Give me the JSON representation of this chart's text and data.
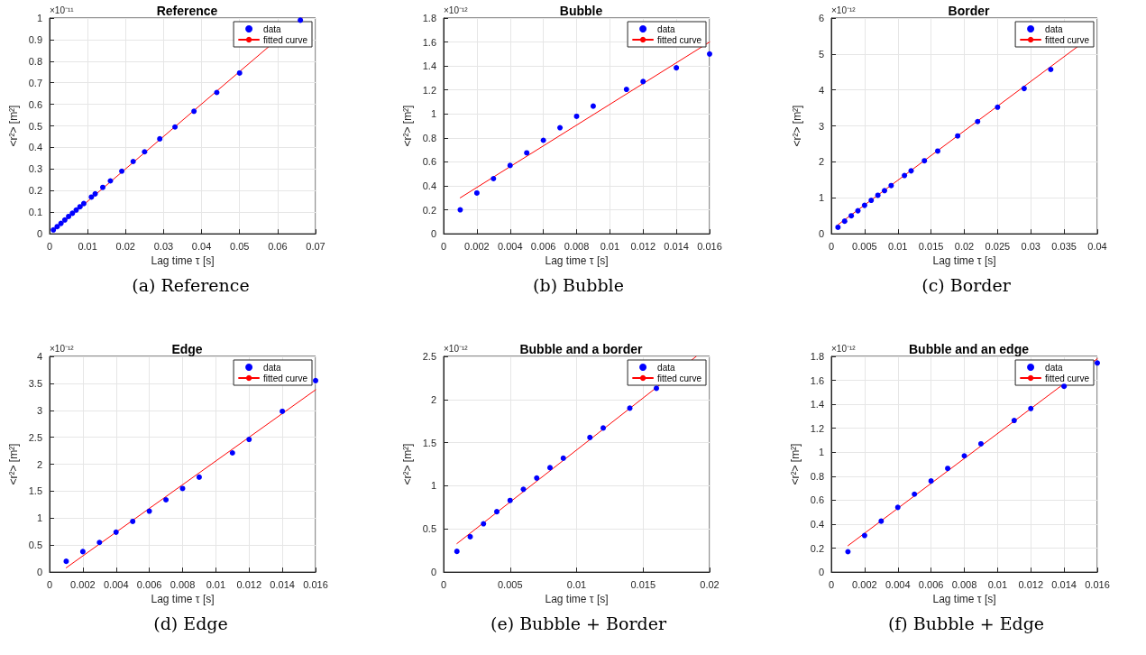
{
  "chart_data": [
    {
      "type": "scatter",
      "title": "Reference",
      "xlabel": "Lag time τ [s]",
      "ylabel": "<r²> [m²]",
      "annotations": [
        "×10⁻¹¹",
        "(a)  Reference"
      ],
      "xlim": [
        0,
        0.07
      ],
      "xticks": [
        0,
        0.01,
        0.02,
        0.03,
        0.04,
        0.05,
        0.06,
        0.07
      ],
      "ylim": [
        0,
        1
      ],
      "yticks": [
        0,
        0.1,
        0.2,
        0.3,
        0.4,
        0.5,
        0.6,
        0.7,
        0.8,
        0.9,
        1
      ],
      "grid": true,
      "legend": "top right",
      "marker": "circle",
      "series": [
        {
          "name": "data",
          "type": "scatter",
          "color": "#0000ff",
          "x": [
            0.001,
            0.002,
            0.003,
            0.004,
            0.005,
            0.006,
            0.007,
            0.008,
            0.009,
            0.011,
            0.012,
            0.014,
            0.016,
            0.019,
            0.022,
            0.025,
            0.029,
            0.033,
            0.038,
            0.044,
            0.05,
            0.066
          ],
          "values": [
            0.018,
            0.033,
            0.048,
            0.064,
            0.08,
            0.095,
            0.11,
            0.125,
            0.14,
            0.17,
            0.185,
            0.215,
            0.245,
            0.29,
            0.335,
            0.38,
            0.44,
            0.495,
            0.568,
            0.655,
            0.745,
            0.99
          ]
        },
        {
          "name": "fitted curve",
          "type": "line",
          "marker": "none",
          "color": "#ff0000",
          "x": [
            0.001,
            0.0665
          ],
          "values": [
            0.015,
            1
          ]
        }
      ]
    },
    {
      "type": "scatter",
      "title": "Bubble",
      "xlabel": "Lag time τ [s]",
      "ylabel": "<r²> [m²]",
      "annotations": [
        "×10⁻¹²",
        "(b)  Bubble"
      ],
      "xlim": [
        0,
        0.016
      ],
      "xticks": [
        0,
        0.002,
        0.004,
        0.006,
        0.008,
        0.01,
        0.012,
        0.014,
        0.016
      ],
      "ylim": [
        0,
        1.8
      ],
      "yticks": [
        0,
        0.2,
        0.4,
        0.6,
        0.8,
        1,
        1.2,
        1.4,
        1.6,
        1.8
      ],
      "grid": true,
      "legend": "top right",
      "marker": "circle",
      "series": [
        {
          "name": "data",
          "type": "scatter",
          "color": "#0000ff",
          "x": [
            0.001,
            0.002,
            0.003,
            0.004,
            0.005,
            0.006,
            0.007,
            0.008,
            0.009,
            0.011,
            0.012,
            0.014,
            0.016
          ],
          "values": [
            0.2,
            0.34,
            0.46,
            0.57,
            0.675,
            0.78,
            0.885,
            0.98,
            1.065,
            1.205,
            1.27,
            1.385,
            1.5
          ]
        },
        {
          "name": "fitted curve",
          "type": "line",
          "marker": "none",
          "color": "#ff0000",
          "x": [
            0.001,
            0.016
          ],
          "values": [
            0.3,
            1.6
          ]
        }
      ]
    },
    {
      "type": "scatter",
      "title": "Border",
      "xlabel": "Lag time τ [s]",
      "ylabel": "<r²> [m²]",
      "annotations": [
        "×10⁻¹²",
        "(c)  Border"
      ],
      "xlim": [
        0,
        0.04
      ],
      "xticks": [
        0,
        0.005,
        0.01,
        0.015,
        0.02,
        0.025,
        0.03,
        0.035,
        0.04
      ],
      "ylim": [
        0,
        6
      ],
      "yticks": [
        0,
        1,
        2,
        3,
        4,
        5,
        6
      ],
      "grid": true,
      "legend": "top right",
      "marker": "circle",
      "series": [
        {
          "name": "data",
          "type": "scatter",
          "color": "#0000ff",
          "x": [
            0.001,
            0.002,
            0.003,
            0.004,
            0.005,
            0.006,
            0.007,
            0.008,
            0.009,
            0.011,
            0.012,
            0.014,
            0.016,
            0.019,
            0.022,
            0.025,
            0.029,
            0.033
          ],
          "values": [
            0.18,
            0.35,
            0.5,
            0.64,
            0.79,
            0.93,
            1.07,
            1.2,
            1.34,
            1.62,
            1.75,
            2.03,
            2.3,
            2.72,
            3.12,
            3.52,
            4.04,
            4.57
          ]
        },
        {
          "name": "fitted curve",
          "type": "line",
          "marker": "none",
          "color": "#ff0000",
          "x": [
            0.001,
            0.037
          ],
          "values": [
            0.25,
            5.2
          ]
        }
      ]
    },
    {
      "type": "scatter",
      "title": "Edge",
      "xlabel": "Lag time τ [s]",
      "ylabel": "<r²> [m²]",
      "annotations": [
        "×10⁻¹²",
        "(d)  Edge"
      ],
      "xlim": [
        0,
        0.016
      ],
      "xticks": [
        0,
        0.002,
        0.004,
        0.006,
        0.008,
        0.01,
        0.012,
        0.014,
        0.016
      ],
      "ylim": [
        0,
        4
      ],
      "yticks": [
        0,
        0.5,
        1,
        1.5,
        2,
        2.5,
        3,
        3.5,
        4
      ],
      "grid": true,
      "legend": "top right",
      "marker": "circle",
      "series": [
        {
          "name": "data",
          "type": "scatter",
          "color": "#0000ff",
          "x": [
            0.001,
            0.002,
            0.003,
            0.004,
            0.005,
            0.006,
            0.007,
            0.008,
            0.009,
            0.011,
            0.012,
            0.014,
            0.016
          ],
          "values": [
            0.2,
            0.38,
            0.55,
            0.74,
            0.94,
            1.13,
            1.34,
            1.55,
            1.76,
            2.21,
            2.46,
            2.98,
            3.55
          ]
        },
        {
          "name": "fitted curve",
          "type": "line",
          "marker": "none",
          "color": "#ff0000",
          "x": [
            0.001,
            0.016
          ],
          "values": [
            0.08,
            3.38
          ]
        }
      ]
    },
    {
      "type": "scatter",
      "title": "Bubble and a border",
      "xlabel": "Lag time τ [s]",
      "ylabel": "<r²> [m²]",
      "annotations": [
        "×10⁻¹²",
        "(e)  Bubble + Border"
      ],
      "xlim": [
        0,
        0.02
      ],
      "xticks": [
        0,
        0.005,
        0.01,
        0.015,
        0.02
      ],
      "ylim": [
        0,
        2.5
      ],
      "yticks": [
        0,
        0.5,
        1,
        1.5,
        2,
        2.5
      ],
      "grid": true,
      "legend": "top right",
      "marker": "circle",
      "series": [
        {
          "name": "data",
          "type": "scatter",
          "color": "#0000ff",
          "x": [
            0.001,
            0.002,
            0.003,
            0.004,
            0.005,
            0.006,
            0.007,
            0.008,
            0.009,
            0.011,
            0.012,
            0.014,
            0.016
          ],
          "values": [
            0.24,
            0.41,
            0.56,
            0.7,
            0.83,
            0.96,
            1.09,
            1.21,
            1.32,
            1.56,
            1.67,
            1.9,
            2.13
          ]
        },
        {
          "name": "fitted curve",
          "type": "line",
          "marker": "none",
          "color": "#ff0000",
          "x": [
            0.001,
            0.019
          ],
          "values": [
            0.33,
            2.5
          ]
        }
      ]
    },
    {
      "type": "scatter",
      "title": "Bubble and an edge",
      "xlabel": "Lag time τ [s]",
      "ylabel": "<r²> [m²]",
      "annotations": [
        "×10⁻¹²",
        "(f)  Bubble + Edge"
      ],
      "xlim": [
        0,
        0.016
      ],
      "xticks": [
        0,
        0.002,
        0.004,
        0.006,
        0.008,
        0.01,
        0.012,
        0.014,
        0.016
      ],
      "ylim": [
        0,
        1.8
      ],
      "yticks": [
        0,
        0.2,
        0.4,
        0.6,
        0.8,
        1,
        1.2,
        1.4,
        1.6,
        1.8
      ],
      "grid": true,
      "legend": "top right",
      "marker": "circle",
      "series": [
        {
          "name": "data",
          "type": "scatter",
          "color": "#0000ff",
          "x": [
            0.001,
            0.002,
            0.003,
            0.004,
            0.005,
            0.006,
            0.007,
            0.008,
            0.009,
            0.011,
            0.012,
            0.014,
            0.016
          ],
          "values": [
            0.17,
            0.305,
            0.425,
            0.54,
            0.65,
            0.76,
            0.865,
            0.97,
            1.07,
            1.265,
            1.365,
            1.55,
            1.745
          ]
        },
        {
          "name": "fitted curve",
          "type": "line",
          "marker": "none",
          "color": "#ff0000",
          "x": [
            0.001,
            0.016
          ],
          "values": [
            0.22,
            1.78
          ]
        }
      ]
    }
  ]
}
